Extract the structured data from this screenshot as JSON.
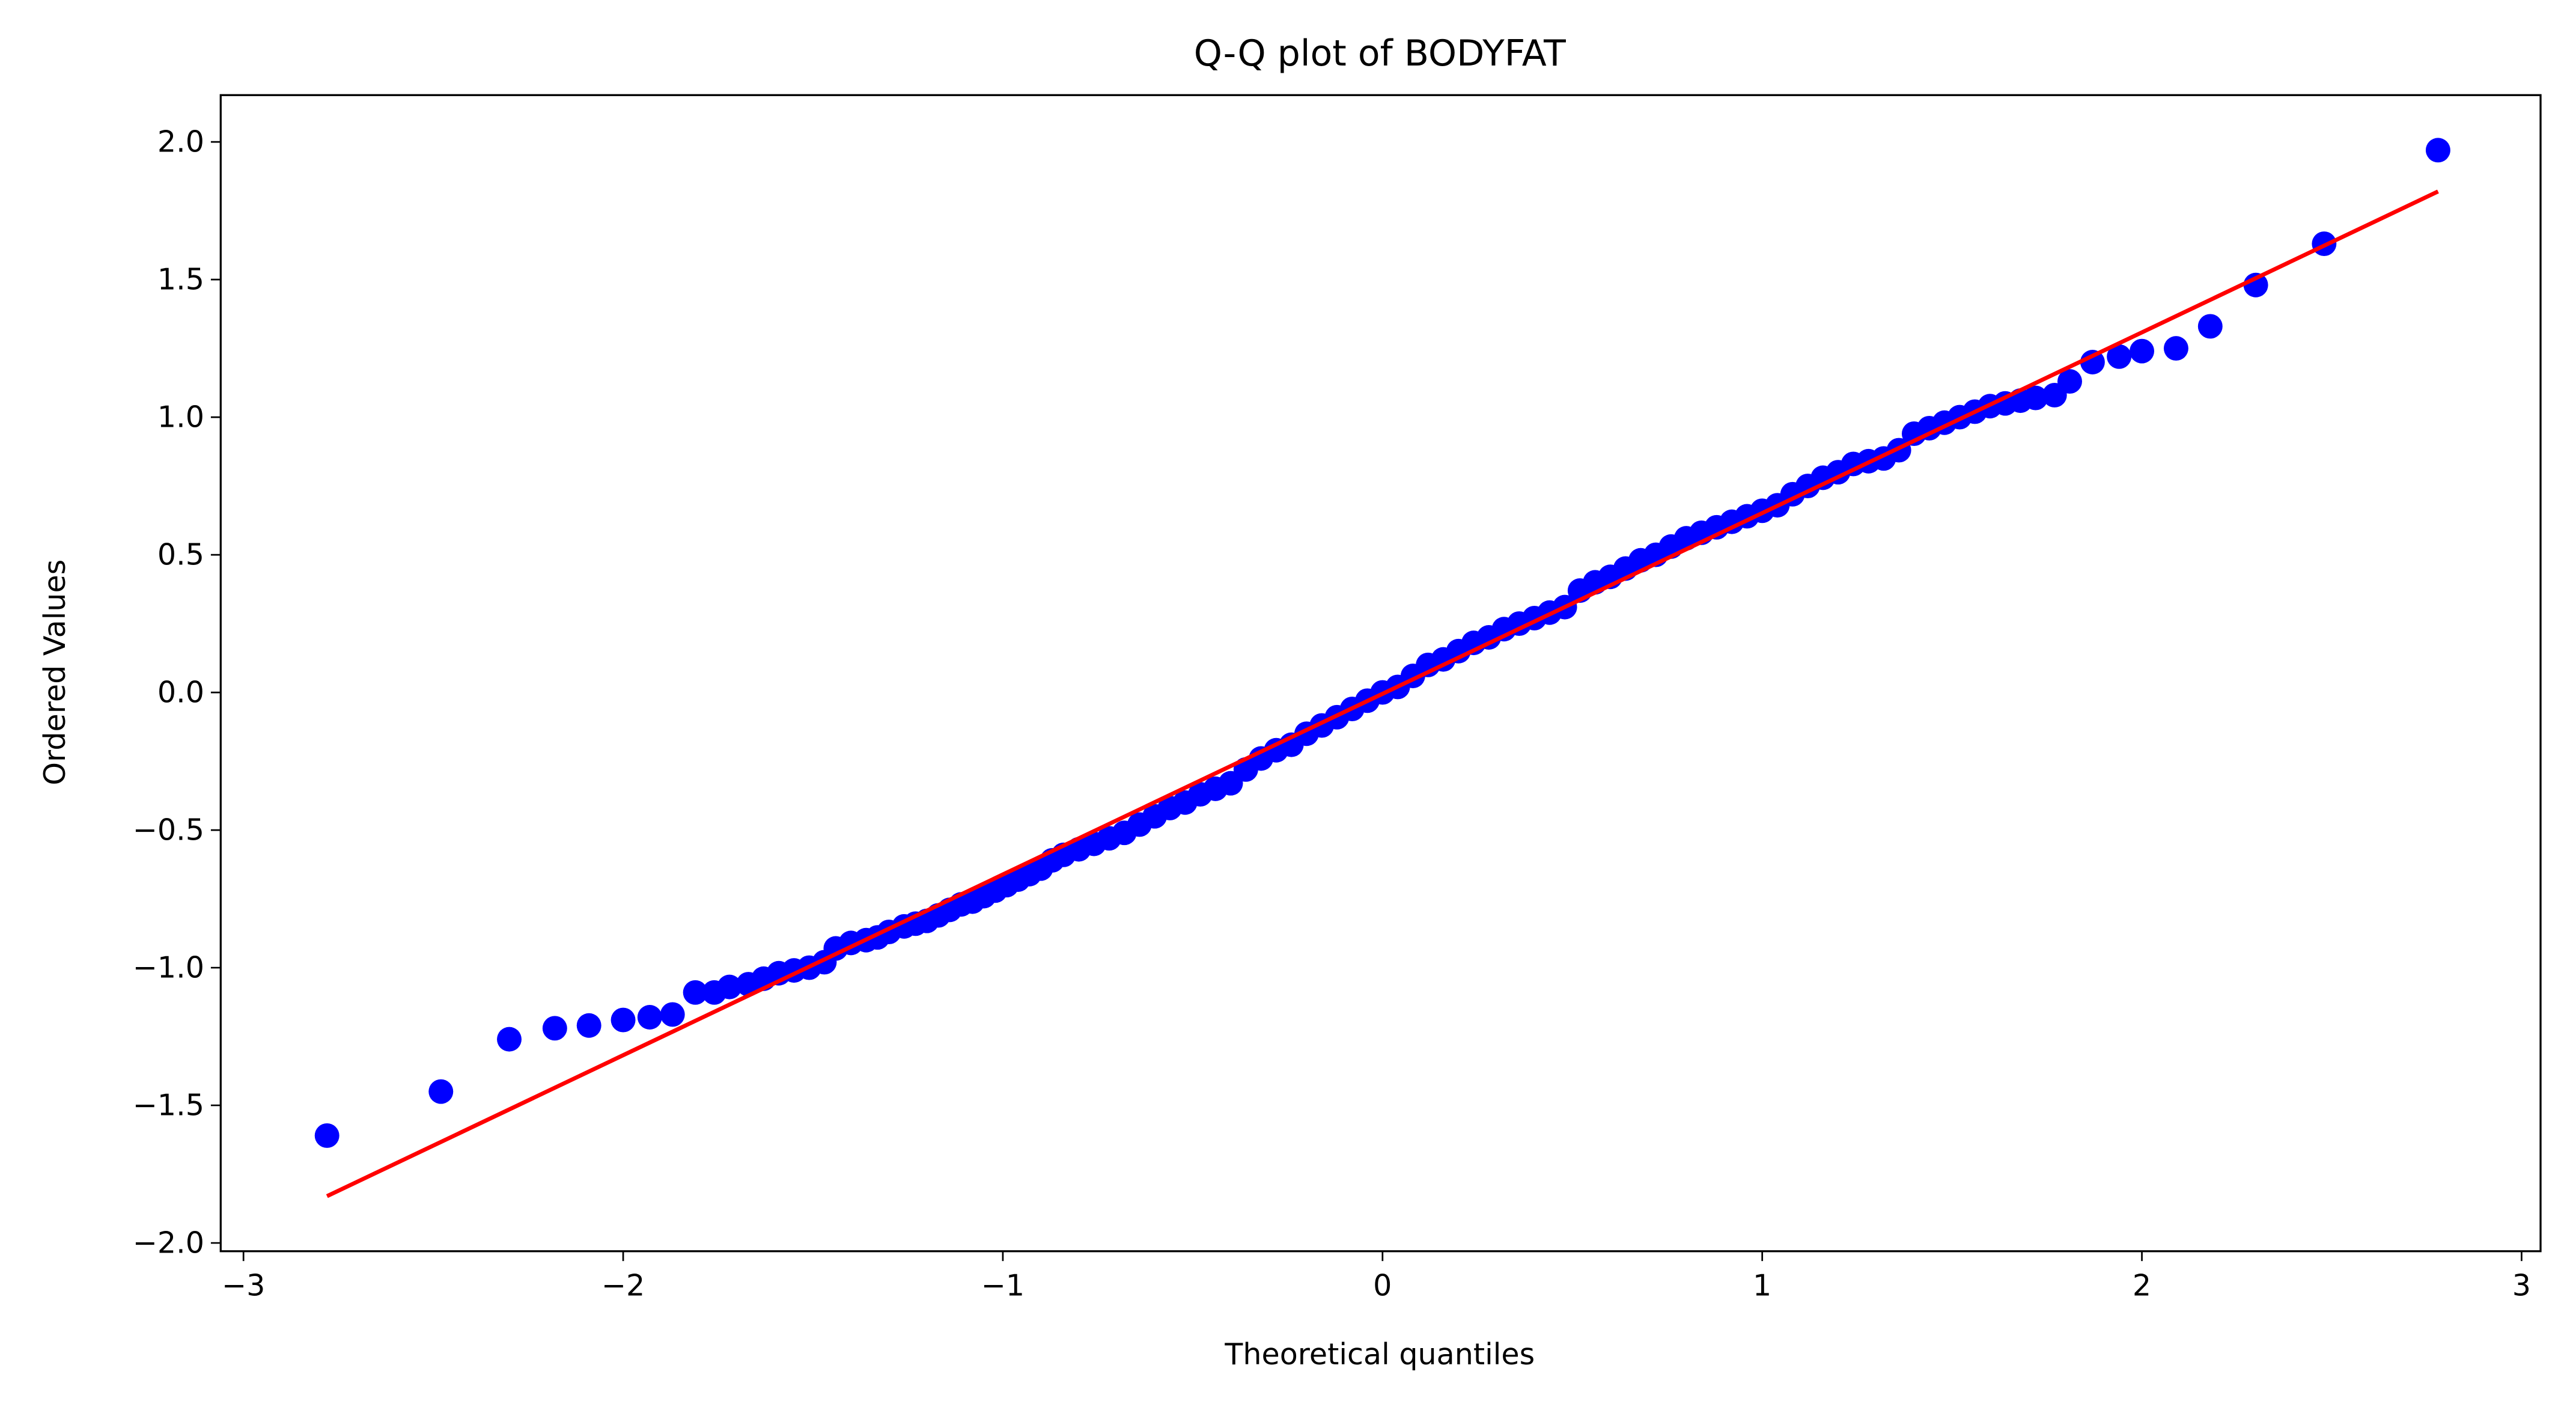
{
  "chart_data": {
    "type": "scatter",
    "title": "Q-Q plot of BODYFAT",
    "x_label": "Theoretical quantiles",
    "y_label": "Ordered Values",
    "xlim": [
      -3.06,
      3.05
    ],
    "ylim": [
      -2.03,
      2.17
    ],
    "xticks": [
      {
        "value": -3,
        "label": "−3"
      },
      {
        "value": -2,
        "label": "−2"
      },
      {
        "value": -1,
        "label": "−1"
      },
      0,
      1,
      2,
      3
    ],
    "yticks": [
      {
        "value": -2.0,
        "label": "−2.0"
      },
      {
        "value": -1.5,
        "label": "−1.5"
      },
      {
        "value": -1.0,
        "label": "−1.0"
      },
      {
        "value": -0.5,
        "label": "−0.5"
      },
      {
        "value": 0.0,
        "label": "0.0"
      },
      {
        "value": 0.5,
        "label": "0.5"
      },
      {
        "value": 1.0,
        "label": "1.0"
      },
      {
        "value": 1.5,
        "label": "1.5"
      },
      {
        "value": 2.0,
        "label": "2.0"
      }
    ],
    "points": {
      "color": "#0000ff",
      "x": [
        -2.78,
        -2.48,
        -2.3,
        -2.18,
        -2.09,
        -2.0,
        -1.93,
        -1.87,
        -1.81,
        -1.76,
        -1.72,
        -1.67,
        -1.63,
        -1.59,
        -1.55,
        -1.51,
        -1.47,
        -1.44,
        -1.4,
        -1.36,
        -1.33,
        -1.3,
        -1.26,
        -1.23,
        -1.2,
        -1.17,
        -1.14,
        -1.11,
        -1.08,
        -1.05,
        -1.02,
        -0.99,
        -0.96,
        -0.93,
        -0.9,
        -0.87,
        -0.84,
        -0.8,
        -0.76,
        -0.72,
        -0.68,
        -0.64,
        -0.6,
        -0.56,
        -0.52,
        -0.48,
        -0.44,
        -0.4,
        -0.36,
        -0.32,
        -0.28,
        -0.24,
        -0.2,
        -0.16,
        -0.12,
        -0.08,
        -0.04,
        0.0,
        0.04,
        0.08,
        0.12,
        0.16,
        0.2,
        0.24,
        0.28,
        0.32,
        0.36,
        0.4,
        0.44,
        0.48,
        0.52,
        0.56,
        0.6,
        0.64,
        0.68,
        0.72,
        0.76,
        0.8,
        0.84,
        0.88,
        0.92,
        0.96,
        1.0,
        1.04,
        1.08,
        1.12,
        1.16,
        1.2,
        1.24,
        1.28,
        1.32,
        1.36,
        1.4,
        1.44,
        1.48,
        1.52,
        1.56,
        1.6,
        1.64,
        1.68,
        1.72,
        1.77,
        1.81,
        1.87,
        1.94,
        2.0,
        2.09,
        2.18,
        2.3,
        2.48,
        2.78
      ],
      "values": [
        -1.61,
        -1.45,
        -1.26,
        -1.22,
        -1.21,
        -1.19,
        -1.18,
        -1.17,
        -1.09,
        -1.09,
        -1.07,
        -1.06,
        -1.04,
        -1.02,
        -1.01,
        -1.0,
        -0.98,
        -0.93,
        -0.91,
        -0.9,
        -0.89,
        -0.87,
        -0.85,
        -0.84,
        -0.83,
        -0.81,
        -0.79,
        -0.77,
        -0.76,
        -0.74,
        -0.72,
        -0.7,
        -0.68,
        -0.66,
        -0.64,
        -0.61,
        -0.59,
        -0.57,
        -0.55,
        -0.53,
        -0.51,
        -0.48,
        -0.45,
        -0.42,
        -0.4,
        -0.37,
        -0.35,
        -0.33,
        -0.28,
        -0.24,
        -0.21,
        -0.19,
        -0.15,
        -0.12,
        -0.09,
        -0.06,
        -0.03,
        0.0,
        0.02,
        0.06,
        0.1,
        0.12,
        0.15,
        0.18,
        0.2,
        0.23,
        0.25,
        0.27,
        0.29,
        0.31,
        0.37,
        0.4,
        0.42,
        0.45,
        0.48,
        0.5,
        0.53,
        0.56,
        0.58,
        0.6,
        0.62,
        0.64,
        0.66,
        0.68,
        0.72,
        0.75,
        0.78,
        0.8,
        0.83,
        0.84,
        0.85,
        0.88,
        0.94,
        0.96,
        0.98,
        1.0,
        1.02,
        1.04,
        1.05,
        1.06,
        1.07,
        1.08,
        1.13,
        1.2,
        1.22,
        1.24,
        1.25,
        1.33,
        1.48,
        1.63,
        1.97
      ]
    },
    "fit_line": {
      "color": "#ff0000",
      "x": [
        -2.78,
        2.78
      ],
      "values": [
        -1.83,
        1.82
      ]
    }
  }
}
